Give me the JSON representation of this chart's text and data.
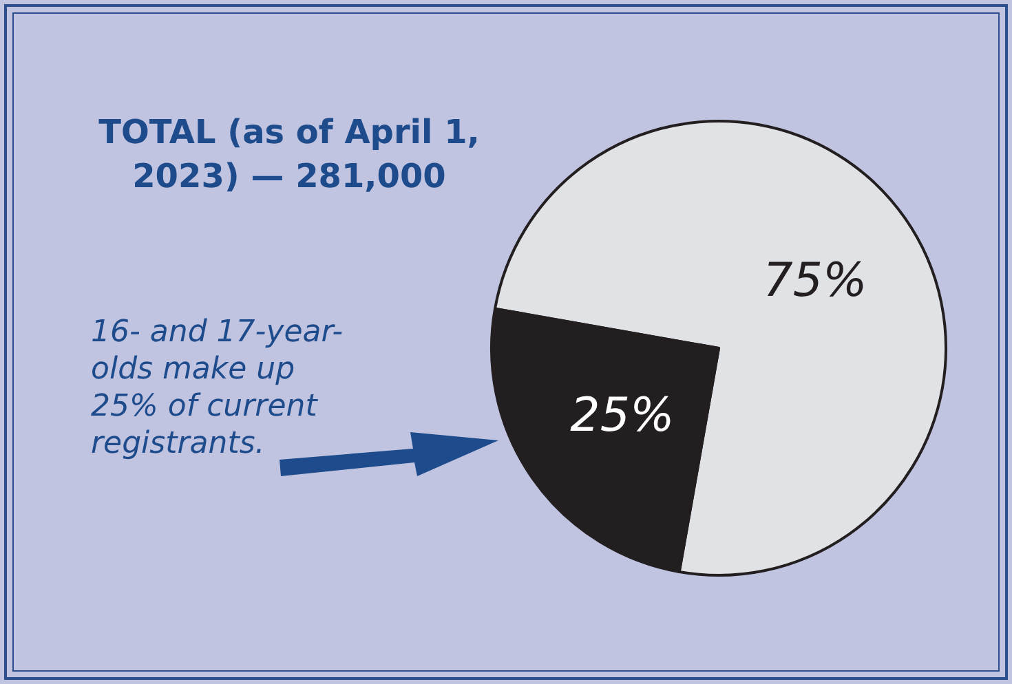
{
  "chart_data": {
    "type": "pie",
    "title": "TOTAL (as of April 1, 2023) — 281,000",
    "categories": [
      null,
      null
    ],
    "values": [
      75,
      25
    ],
    "colors": [
      "#e1e2e6",
      "#231f20"
    ],
    "value_labels": [
      "75%",
      "25%"
    ],
    "annotations": [
      "16- and 17-year-olds make up 25% of current registrants."
    ]
  }
}
